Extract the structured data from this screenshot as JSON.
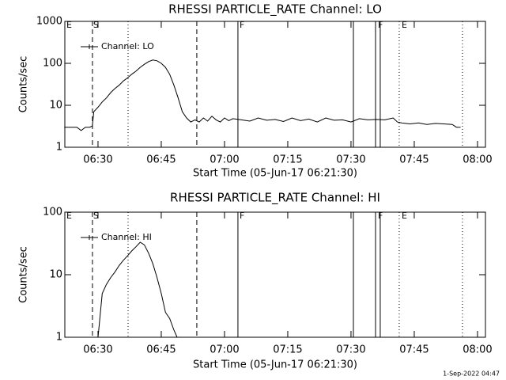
{
  "chart_data": [
    {
      "type": "line",
      "title": "RHESSI PARTICLE_RATE Channel: LO",
      "xlabel": "Start Time (05-Jun-17 06:21:30)",
      "ylabel": "Counts/sec",
      "x": [
        "06:22",
        "06:23",
        "06:24",
        "06:25",
        "06:26",
        "06:27",
        "06:28",
        "06:28:40",
        "06:29",
        "06:30",
        "06:31",
        "06:32",
        "06:33",
        "06:34",
        "06:35",
        "06:36",
        "06:37",
        "06:38",
        "06:39",
        "06:40",
        "06:41",
        "06:42",
        "06:43",
        "06:44",
        "06:45",
        "06:46",
        "06:47",
        "06:48",
        "06:49",
        "06:50",
        "06:51",
        "06:52",
        "06:53",
        "06:54",
        "06:55",
        "06:56",
        "06:57",
        "06:58",
        "06:59",
        "07:00",
        "07:01",
        "07:02",
        "07:04",
        "07:06",
        "07:08",
        "07:10",
        "07:12",
        "07:14",
        "07:16",
        "07:18",
        "07:20",
        "07:22",
        "07:24",
        "07:26",
        "07:28",
        "07:30",
        "07:32",
        "07:34",
        "07:36",
        "07:38",
        "07:40",
        "07:41",
        "07:42",
        "07:44",
        "07:46",
        "07:48",
        "07:50",
        "07:52",
        "07:54",
        "07:55",
        "07:56"
      ],
      "series": [
        {
          "name": "Channel: LO",
          "color": "#000000",
          "values": [
            3,
            3,
            3,
            3,
            2.5,
            3,
            3,
            3.2,
            7,
            9,
            12,
            15,
            20,
            25,
            30,
            38,
            45,
            55,
            65,
            80,
            95,
            110,
            120,
            115,
            100,
            80,
            55,
            30,
            15,
            7,
            5,
            4,
            4.5,
            4,
            5,
            4.2,
            5.5,
            4.5,
            4,
            5,
            4.3,
            4.8,
            4.5,
            4.2,
            5,
            4.4,
            4.6,
            4.1,
            5,
            4.3,
            4.7,
            4,
            5,
            4.4,
            4.5,
            4,
            4.8,
            4.5,
            4.6,
            4.5,
            5,
            4,
            3.8,
            3.6,
            3.8,
            3.5,
            3.7,
            3.6,
            3.5,
            3,
            3
          ]
        }
      ],
      "xlim": [
        "06:22:08",
        "08:01:53"
      ],
      "xticks": [
        "06:30",
        "06:45",
        "07:00",
        "07:15",
        "07:30",
        "07:45",
        "08:00"
      ],
      "ylim": [
        1,
        1000
      ],
      "yticks": [
        1,
        10,
        100,
        1000
      ],
      "yscale": "log",
      "legend": "upper left",
      "vlines": [
        {
          "x": "06:28:41",
          "style": "dashed"
        },
        {
          "x": "06:37:08",
          "style": "dotted"
        },
        {
          "x": "06:53:26",
          "style": "dashed"
        },
        {
          "x": "07:03:11",
          "style": "solid"
        },
        {
          "x": "07:30:34",
          "style": "solid"
        },
        {
          "x": "07:35:49",
          "style": "solid"
        },
        {
          "x": "07:36:56",
          "style": "solid"
        },
        {
          "x": "07:41:26",
          "style": "dotted"
        },
        {
          "x": "07:56:26",
          "style": "dotted"
        }
      ],
      "flags": [
        {
          "x": "06:22:30",
          "label": "E"
        },
        {
          "x": "06:28:52",
          "label": "S"
        },
        {
          "x": "07:03:34",
          "label": "F"
        },
        {
          "x": "07:36:23",
          "label": "F"
        },
        {
          "x": "07:42:00",
          "label": "E"
        }
      ]
    },
    {
      "type": "line",
      "title": "RHESSI PARTICLE_RATE Channel: HI",
      "xlabel": "Start Time (05-Jun-17 06:21:30)",
      "ylabel": "Counts/sec",
      "x": [
        "06:30",
        "06:31",
        "06:32",
        "06:33",
        "06:34",
        "06:35",
        "06:36",
        "06:37",
        "06:38",
        "06:39",
        "06:40",
        "06:41",
        "06:42",
        "06:43",
        "06:44",
        "06:45",
        "06:46",
        "06:47",
        "06:48",
        "06:48:45"
      ],
      "series": [
        {
          "name": "Channel: HI",
          "color": "#000000",
          "values": [
            1,
            5,
            7,
            9,
            11,
            14,
            17,
            20,
            24,
            28,
            33,
            30,
            22,
            15,
            9,
            5,
            2.5,
            2,
            1.3,
            1
          ]
        }
      ],
      "xlim": [
        "06:22:08",
        "08:01:53"
      ],
      "xticks": [
        "06:30",
        "06:45",
        "07:00",
        "07:15",
        "07:30",
        "07:45",
        "08:00"
      ],
      "ylim": [
        1,
        100
      ],
      "yticks": [
        1,
        10,
        100
      ],
      "yscale": "log",
      "legend": "upper left",
      "vlines": [
        {
          "x": "06:28:41",
          "style": "dashed"
        },
        {
          "x": "06:37:08",
          "style": "dotted"
        },
        {
          "x": "06:53:26",
          "style": "dashed"
        },
        {
          "x": "07:03:11",
          "style": "solid"
        },
        {
          "x": "07:30:34",
          "style": "solid"
        },
        {
          "x": "07:35:49",
          "style": "solid"
        },
        {
          "x": "07:36:56",
          "style": "solid"
        },
        {
          "x": "07:41:26",
          "style": "dotted"
        },
        {
          "x": "07:56:26",
          "style": "dotted"
        }
      ],
      "flags": [
        {
          "x": "06:22:30",
          "label": "E"
        },
        {
          "x": "06:28:52",
          "label": "S"
        },
        {
          "x": "07:03:34",
          "label": "F"
        },
        {
          "x": "07:36:23",
          "label": "F"
        },
        {
          "x": "07:42:00",
          "label": "E"
        }
      ]
    }
  ],
  "footer": "1-Sep-2022 04:47"
}
